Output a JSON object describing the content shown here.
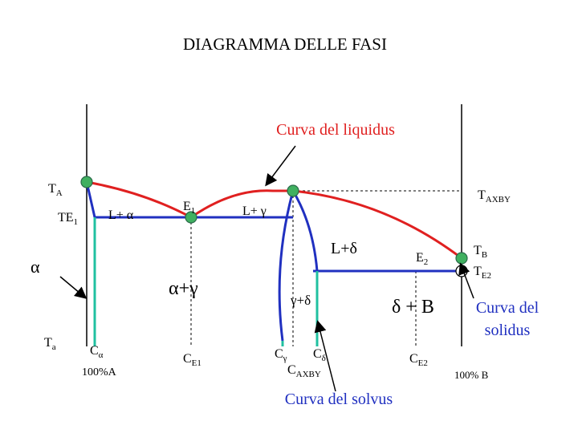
{
  "title": "DIAGRAMMA DELLE FASI",
  "annotations": {
    "liquidus": "Curva del liquidus",
    "solidus": [
      "Curva del",
      "solidus"
    ],
    "solvus": "Curva del solvus"
  },
  "labels": {
    "TA": {
      "main": "T",
      "sub": "A"
    },
    "TE1": {
      "main": "TE",
      "sub": "1"
    },
    "E1": {
      "main": "E",
      "sub": "1"
    },
    "TAXBY": {
      "main": "T",
      "sub": "AXBY"
    },
    "E2": {
      "main": "E",
      "sub": "2"
    },
    "TB": {
      "main": "T",
      "sub": "B"
    },
    "TE2": {
      "main": "T",
      "sub": "E2"
    },
    "Ta": {
      "main": "T",
      "sub": "a"
    },
    "Calpha": {
      "main": "C",
      "sub": "α"
    },
    "CE1": {
      "main": "C",
      "sub": "E1"
    },
    "Cgamma": {
      "main": "C",
      "sub": "γ"
    },
    "Cdelta": {
      "main": "C",
      "sub": "δ"
    },
    "CAXBY": {
      "main": "C",
      "sub": "AXBY"
    },
    "CE2": {
      "main": "C",
      "sub": "E2"
    }
  },
  "regions": {
    "L_alpha": "L+ α",
    "L_gamma": "L+ γ",
    "L_delta": "L+δ",
    "alpha": "α",
    "alpha_gamma": "α+γ",
    "gamma_delta": "γ+δ",
    "delta_B": "δ + B"
  },
  "axis": {
    "left": "100%A",
    "right": "100% B"
  }
}
